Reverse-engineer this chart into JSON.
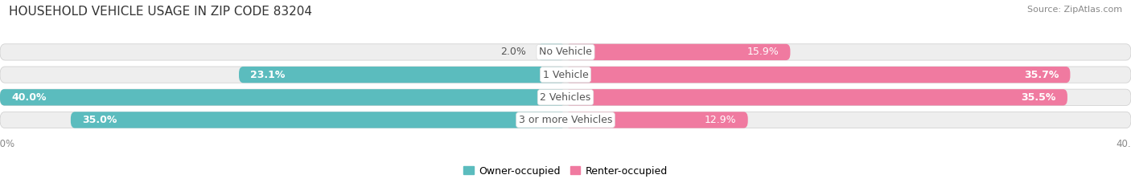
{
  "title": "HOUSEHOLD VEHICLE USAGE IN ZIP CODE 83204",
  "source": "Source: ZipAtlas.com",
  "categories": [
    "No Vehicle",
    "1 Vehicle",
    "2 Vehicles",
    "3 or more Vehicles"
  ],
  "owner_values": [
    2.0,
    23.1,
    40.0,
    35.0
  ],
  "renter_values": [
    15.9,
    35.7,
    35.5,
    12.9
  ],
  "owner_color": "#5bbcbe",
  "renter_color": "#f07aa0",
  "owner_label": "Owner-occupied",
  "renter_label": "Renter-occupied",
  "bar_height": 0.72,
  "xlim": 40.0,
  "background_color": "#ffffff",
  "bar_background_color": "#eeeeee",
  "title_fontsize": 11,
  "label_fontsize": 9,
  "axis_label_fontsize": 8.5,
  "legend_fontsize": 9,
  "category_fontsize": 9
}
